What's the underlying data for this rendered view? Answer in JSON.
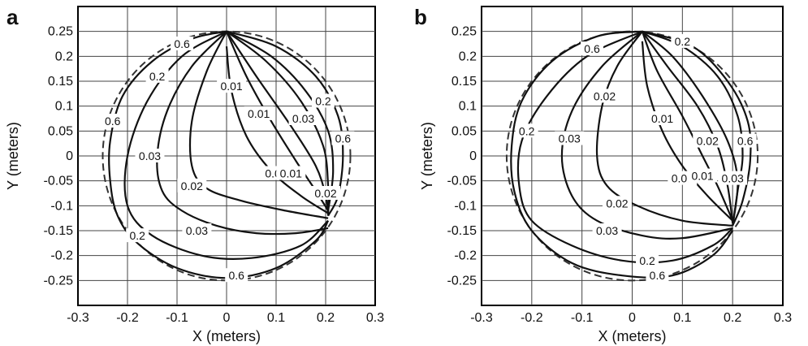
{
  "chart_data": [
    {
      "type": "contour",
      "panel_label": "a",
      "xlabel": "X (meters)",
      "ylabel": "Y (meters)",
      "xlim": [
        -0.3,
        0.3
      ],
      "ylim": [
        -0.3,
        0.3
      ],
      "xticks": [
        "-0.3",
        "-0.2",
        "-0.1",
        "0",
        "0.1",
        "0.2",
        "0.3"
      ],
      "yticks": [
        "0.25",
        "0.2",
        "0.15",
        "0.1",
        "0.05",
        "0",
        "-0.05",
        "-0.1",
        "-0.15",
        "-0.2",
        "-0.25"
      ],
      "grid": true,
      "boundary": {
        "shape": "circle",
        "center": [
          0,
          0
        ],
        "radius": 0.25,
        "style": "dashed"
      },
      "contours": [
        {
          "level": "0.6",
          "points": [
            [
              0,
              0.25
            ],
            [
              -0.07,
              0.235
            ],
            [
              -0.15,
              0.19
            ],
            [
              -0.21,
              0.12
            ],
            [
              -0.235,
              0.03
            ],
            [
              -0.235,
              -0.05
            ],
            [
              -0.22,
              -0.12
            ],
            [
              -0.18,
              -0.175
            ],
            [
              -0.1,
              -0.225
            ],
            [
              0,
              -0.245
            ],
            [
              0.1,
              -0.225
            ],
            [
              0.18,
              -0.17
            ],
            [
              0.205,
              -0.13
            ]
          ],
          "label": "0.6",
          "label_at": [
            [
              -0.09,
              0.225
            ],
            [
              -0.23,
              0.07
            ],
            [
              0.02,
              -0.24
            ]
          ]
        },
        {
          "level": "0.6",
          "points": [
            [
              0,
              0.25
            ],
            [
              0.1,
              0.22
            ],
            [
              0.18,
              0.16
            ],
            [
              0.225,
              0.08
            ],
            [
              0.235,
              0
            ],
            [
              0.225,
              -0.08
            ],
            [
              0.205,
              -0.12
            ]
          ],
          "label": "0.6",
          "label_at": [
            [
              0.235,
              0.035
            ]
          ]
        },
        {
          "level": "0.2",
          "points": [
            [
              0,
              0.25
            ],
            [
              -0.09,
              0.2
            ],
            [
              -0.16,
              0.11
            ],
            [
              -0.2,
              0
            ],
            [
              -0.2,
              -0.1
            ],
            [
              -0.15,
              -0.16
            ],
            [
              -0.05,
              -0.2
            ],
            [
              0.05,
              -0.205
            ],
            [
              0.15,
              -0.18
            ],
            [
              0.205,
              -0.13
            ]
          ],
          "label": "0.2",
          "label_at": [
            [
              -0.14,
              0.16
            ],
            [
              -0.18,
              -0.16
            ]
          ]
        },
        {
          "level": "0.2",
          "points": [
            [
              0,
              0.25
            ],
            [
              0.09,
              0.2
            ],
            [
              0.16,
              0.13
            ],
            [
              0.205,
              0.05
            ],
            [
              0.215,
              -0.03
            ],
            [
              0.205,
              -0.11
            ]
          ],
          "label": "0.2",
          "label_at": [
            [
              0.195,
              0.11
            ]
          ]
        },
        {
          "level": "0.03",
          "points": [
            [
              0,
              0.25
            ],
            [
              -0.07,
              0.18
            ],
            [
              -0.12,
              0.09
            ],
            [
              -0.14,
              0
            ],
            [
              -0.13,
              -0.07
            ],
            [
              -0.09,
              -0.11
            ],
            [
              -0.02,
              -0.14
            ],
            [
              0.06,
              -0.155
            ],
            [
              0.14,
              -0.155
            ],
            [
              0.205,
              -0.145
            ]
          ],
          "label": "0.03",
          "label_at": [
            [
              -0.155,
              0.0
            ],
            [
              -0.06,
              -0.15
            ]
          ]
        },
        {
          "level": "0.03",
          "points": [
            [
              0,
              0.25
            ],
            [
              0.08,
              0.19
            ],
            [
              0.15,
              0.11
            ],
            [
              0.195,
              0.02
            ],
            [
              0.205,
              -0.06
            ],
            [
              0.205,
              -0.12
            ]
          ],
          "label": "0.03",
          "label_at": [
            [
              0.155,
              0.075
            ]
          ]
        },
        {
          "level": "0.02",
          "points": [
            [
              0,
              0.25
            ],
            [
              -0.04,
              0.17
            ],
            [
              -0.07,
              0.07
            ],
            [
              -0.07,
              -0.02
            ],
            [
              -0.04,
              -0.065
            ],
            [
              0.03,
              -0.09
            ],
            [
              0.12,
              -0.11
            ],
            [
              0.205,
              -0.125
            ]
          ],
          "label": "0.02",
          "label_at": [
            [
              -0.07,
              -0.06
            ]
          ]
        },
        {
          "level": "0.02",
          "points": [
            [
              0,
              0.25
            ],
            [
              0.06,
              0.16
            ],
            [
              0.13,
              0.06
            ],
            [
              0.18,
              -0.02
            ],
            [
              0.2,
              -0.08
            ],
            [
              0.205,
              -0.12
            ]
          ],
          "label": "0.02",
          "label_at": [
            [
              0.2,
              -0.075
            ]
          ]
        },
        {
          "level": "0.01",
          "points": [
            [
              0,
              0.22
            ],
            [
              0.01,
              0.13
            ],
            [
              0.04,
              0.04
            ],
            [
              0.09,
              -0.03
            ],
            [
              0.15,
              -0.08
            ],
            [
              0.205,
              -0.115
            ]
          ],
          "label": "0.01",
          "label_at": [
            [
              0.01,
              0.14
            ],
            [
              0.1,
              -0.035
            ]
          ]
        },
        {
          "level": "0.01",
          "points": [
            [
              0,
              0.25
            ],
            [
              0.04,
              0.16
            ],
            [
              0.09,
              0.07
            ],
            [
              0.14,
              -0.01
            ],
            [
              0.18,
              -0.07
            ],
            [
              0.205,
              -0.11
            ]
          ],
          "label": "0.01",
          "label_at": [
            [
              0.065,
              0.085
            ],
            [
              0.13,
              -0.035
            ]
          ]
        }
      ]
    },
    {
      "type": "contour",
      "panel_label": "b",
      "xlabel": "X (meters)",
      "ylabel": "Y (meters)",
      "xlim": [
        -0.3,
        0.3
      ],
      "ylim": [
        -0.3,
        0.3
      ],
      "xticks": [
        "-0.3",
        "-0.2",
        "-0.1",
        "0",
        "0.1",
        "0.2",
        "0.3"
      ],
      "yticks": [
        "0.25",
        "0.2",
        "0.15",
        "0.1",
        "0.05",
        "0",
        "-0.05",
        "-0.1",
        "-0.15",
        "-0.2",
        "-0.25"
      ],
      "grid": true,
      "boundary": {
        "shape": "circle",
        "center": [
          0,
          0
        ],
        "radius": 0.25,
        "style": "dashed"
      },
      "contours": [
        {
          "level": "0.6",
          "points": [
            [
              0.02,
              0.25
            ],
            [
              -0.07,
              0.24
            ],
            [
              -0.16,
              0.19
            ],
            [
              -0.22,
              0.11
            ],
            [
              -0.24,
              0.02
            ],
            [
              -0.235,
              -0.07
            ],
            [
              -0.2,
              -0.15
            ],
            [
              -0.12,
              -0.215
            ],
            [
              -0.02,
              -0.24
            ],
            [
              0.08,
              -0.24
            ],
            [
              0.16,
              -0.2
            ],
            [
              0.2,
              -0.15
            ]
          ],
          "label": "0.6",
          "label_at": [
            [
              -0.08,
              0.215
            ],
            [
              0.05,
              -0.24
            ]
          ]
        },
        {
          "level": "0.6",
          "points": [
            [
              0.02,
              0.25
            ],
            [
              0.12,
              0.22
            ],
            [
              0.19,
              0.15
            ],
            [
              0.23,
              0.07
            ],
            [
              0.235,
              -0.01
            ],
            [
              0.22,
              -0.09
            ],
            [
              0.2,
              -0.14
            ]
          ],
          "label": "0.6",
          "label_at": [
            [
              0.225,
              0.03
            ]
          ]
        },
        {
          "level": "0.2",
          "points": [
            [
              0.02,
              0.25
            ],
            [
              -0.09,
              0.2
            ],
            [
              -0.17,
              0.12
            ],
            [
              -0.22,
              0.03
            ],
            [
              -0.225,
              -0.06
            ],
            [
              -0.2,
              -0.13
            ],
            [
              -0.12,
              -0.18
            ],
            [
              -0.02,
              -0.21
            ],
            [
              0.08,
              -0.21
            ],
            [
              0.16,
              -0.18
            ],
            [
              0.2,
              -0.145
            ]
          ],
          "label": "0.2",
          "label_at": [
            [
              -0.21,
              0.05
            ],
            [
              0.03,
              -0.21
            ]
          ]
        },
        {
          "level": "0.2",
          "points": [
            [
              0.02,
              0.25
            ],
            [
              0.1,
              0.22
            ],
            [
              0.17,
              0.16
            ],
            [
              0.21,
              0.08
            ],
            [
              0.22,
              0
            ],
            [
              0.21,
              -0.07
            ],
            [
              0.2,
              -0.14
            ]
          ],
          "label": "0.2",
          "label_at": [
            [
              0.1,
              0.23
            ]
          ]
        },
        {
          "level": "0.03",
          "points": [
            [
              0.02,
              0.25
            ],
            [
              -0.06,
              0.18
            ],
            [
              -0.12,
              0.09
            ],
            [
              -0.14,
              0
            ],
            [
              -0.12,
              -0.08
            ],
            [
              -0.07,
              -0.13
            ],
            [
              0.02,
              -0.16
            ],
            [
              0.1,
              -0.165
            ],
            [
              0.2,
              -0.145
            ]
          ],
          "label": "0.03",
          "label_at": [
            [
              -0.125,
              0.035
            ],
            [
              -0.05,
              -0.15
            ]
          ]
        },
        {
          "level": "0.03",
          "points": [
            [
              0.02,
              0.25
            ],
            [
              0.08,
              0.2
            ],
            [
              0.14,
              0.12
            ],
            [
              0.19,
              0.03
            ],
            [
              0.21,
              -0.05
            ],
            [
              0.2,
              -0.14
            ]
          ],
          "label": "0.03",
          "label_at": [
            [
              0.2,
              -0.045
            ]
          ]
        },
        {
          "level": "0.02",
          "points": [
            [
              0.02,
              0.25
            ],
            [
              -0.03,
              0.18
            ],
            [
              -0.06,
              0.1
            ],
            [
              -0.07,
              0.0
            ],
            [
              -0.05,
              -0.06
            ],
            [
              0.01,
              -0.1
            ],
            [
              0.1,
              -0.13
            ],
            [
              0.2,
              -0.14
            ]
          ],
          "label": "0.02",
          "label_at": [
            [
              -0.055,
              0.12
            ],
            [
              -0.03,
              -0.095
            ]
          ]
        },
        {
          "level": "0.02",
          "points": [
            [
              0.02,
              0.25
            ],
            [
              0.07,
              0.18
            ],
            [
              0.13,
              0.1
            ],
            [
              0.17,
              0.02
            ],
            [
              0.19,
              -0.06
            ],
            [
              0.2,
              -0.135
            ]
          ],
          "label": "0.02",
          "label_at": [
            [
              0.15,
              0.03
            ]
          ]
        },
        {
          "level": "0.01",
          "points": [
            [
              0.02,
              0.23
            ],
            [
              0.03,
              0.14
            ],
            [
              0.06,
              0.05
            ],
            [
              0.1,
              -0.02
            ],
            [
              0.15,
              -0.08
            ],
            [
              0.2,
              -0.13
            ]
          ],
          "label": "0.01",
          "label_at": [
            [
              0.06,
              0.075
            ],
            [
              0.1,
              -0.045
            ]
          ]
        },
        {
          "level": "0.01",
          "points": [
            [
              0.02,
              0.25
            ],
            [
              0.05,
              0.17
            ],
            [
              0.1,
              0.08
            ],
            [
              0.14,
              0
            ],
            [
              0.17,
              -0.06
            ],
            [
              0.2,
              -0.13
            ]
          ],
          "label": "0.01",
          "label_at": [
            [
              0.14,
              -0.04
            ]
          ]
        }
      ]
    }
  ]
}
